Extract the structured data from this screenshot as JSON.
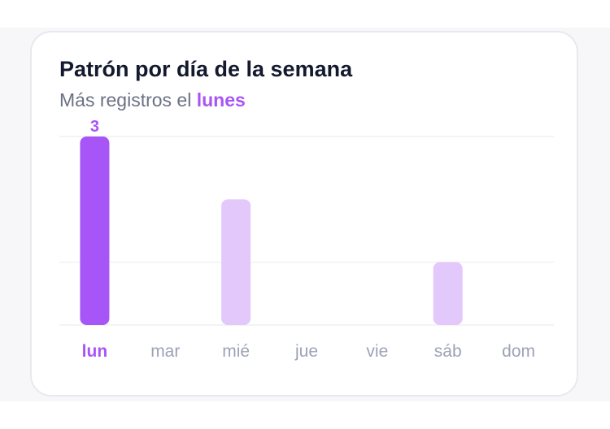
{
  "card": {
    "title": "Patrón por día de la semana",
    "subtitle_prefix": "Más registros el",
    "subtitle_highlight": "lunes"
  },
  "colors": {
    "accent": "#a855f7",
    "bar_muted": "#e2c8fb",
    "label_muted": "#9ca3b4",
    "gridline": "#eeeef2"
  },
  "chart_data": {
    "type": "bar",
    "categories": [
      "lun",
      "mar",
      "mié",
      "jue",
      "vie",
      "sáb",
      "dom"
    ],
    "values": [
      3,
      0,
      2,
      0,
      0,
      1,
      0
    ],
    "highlight_index": 0,
    "value_labels": [
      "3",
      "",
      "",
      "",
      "",
      "",
      ""
    ],
    "title": "Patrón por día de la semana",
    "subtitle": "Más registros el lunes",
    "xlabel": "",
    "ylabel": "",
    "ylim": [
      0,
      3
    ],
    "grid": true,
    "legend": "none"
  }
}
